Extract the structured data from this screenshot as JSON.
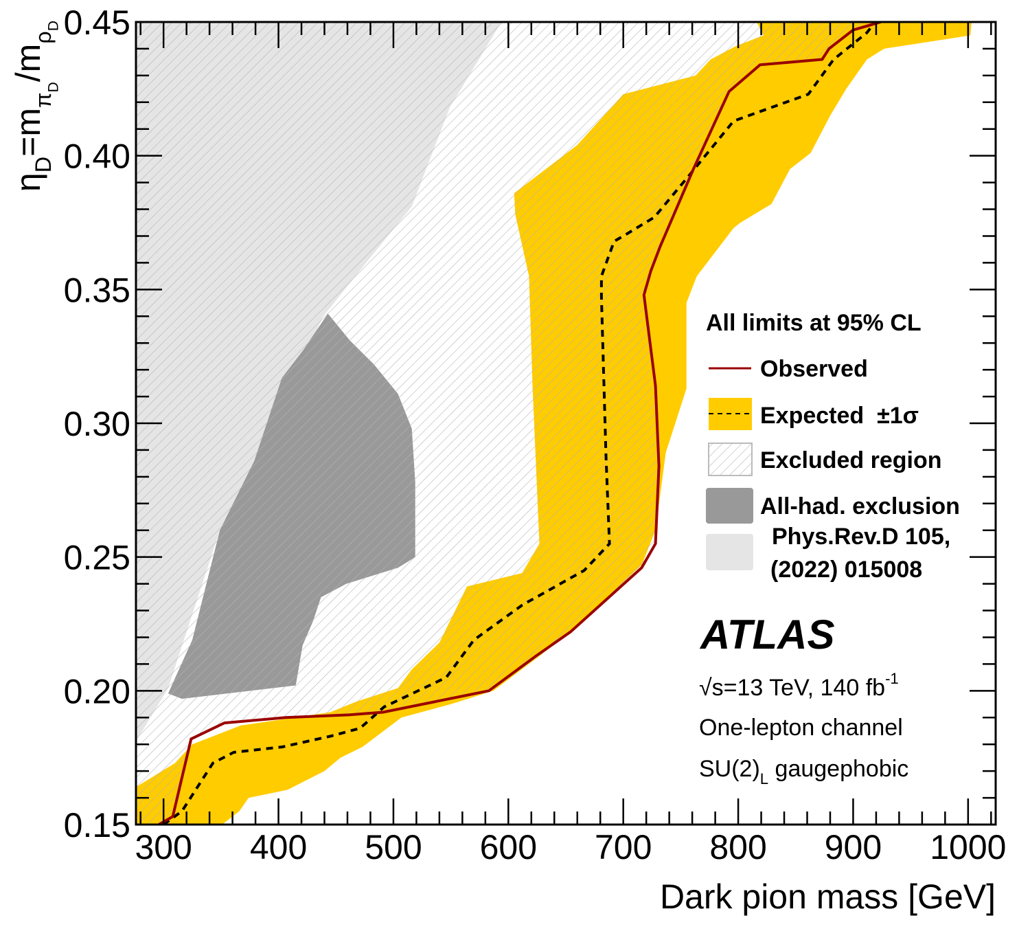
{
  "chart_data": {
    "type": "area",
    "xlabel": "Dark pion mass [GeV]",
    "ylabel": "η_D=m_{π_D}/m_{ρ_D}",
    "xlim": [
      276,
      1024
    ],
    "ylim": [
      0.15,
      0.45
    ],
    "x_ticks": [
      300,
      400,
      500,
      600,
      700,
      800,
      900,
      1000
    ],
    "x_tick_labels": [
      "300",
      "400",
      "500",
      "600",
      "700",
      "800",
      "900",
      "1000"
    ],
    "y_ticks": [
      0.15,
      0.2,
      0.25,
      0.3,
      0.35,
      0.4,
      0.45
    ],
    "y_tick_labels": [
      "0.15",
      "0.20",
      "0.25",
      "0.30",
      "0.35",
      "0.40",
      "0.45"
    ],
    "grid": false,
    "legend_placement": "right",
    "colors": {
      "observed": "#990000",
      "expected": "#000000",
      "band": "#ffcc00",
      "hatch": "#b4b4b4",
      "allhad": "#999999",
      "previous": "#e5e5e5"
    },
    "observed": [
      [
        296,
        0.15
      ],
      [
        308,
        0.153
      ],
      [
        324,
        0.182
      ],
      [
        353,
        0.188
      ],
      [
        406,
        0.19
      ],
      [
        461,
        0.191
      ],
      [
        491,
        0.192
      ],
      [
        583,
        0.2
      ],
      [
        624,
        0.213
      ],
      [
        654,
        0.222
      ],
      [
        716,
        0.246
      ],
      [
        728,
        0.255
      ],
      [
        731,
        0.284
      ],
      [
        728,
        0.314
      ],
      [
        718,
        0.348
      ],
      [
        724,
        0.357
      ],
      [
        732,
        0.366
      ],
      [
        761,
        0.395
      ],
      [
        792,
        0.424
      ],
      [
        819,
        0.434
      ],
      [
        873,
        0.436
      ],
      [
        879,
        0.44
      ],
      [
        900,
        0.447
      ],
      [
        924,
        0.45
      ]
    ],
    "expected": [
      [
        300,
        0.15
      ],
      [
        316,
        0.155
      ],
      [
        343,
        0.173
      ],
      [
        361,
        0.177
      ],
      [
        403,
        0.179
      ],
      [
        445,
        0.183
      ],
      [
        471,
        0.186
      ],
      [
        492,
        0.194
      ],
      [
        546,
        0.205
      ],
      [
        570,
        0.219
      ],
      [
        612,
        0.232
      ],
      [
        666,
        0.245
      ],
      [
        688,
        0.255
      ],
      [
        685,
        0.287
      ],
      [
        681,
        0.347
      ],
      [
        681,
        0.355
      ],
      [
        692,
        0.368
      ],
      [
        700,
        0.37
      ],
      [
        727,
        0.377
      ],
      [
        758,
        0.393
      ],
      [
        796,
        0.413
      ],
      [
        861,
        0.423
      ],
      [
        883,
        0.436
      ],
      [
        912,
        0.446
      ],
      [
        919,
        0.45
      ]
    ],
    "expected_band_outer": [
      [
        351,
        0.15
      ],
      [
        366,
        0.155
      ],
      [
        374,
        0.16
      ],
      [
        408,
        0.163
      ],
      [
        440,
        0.17
      ],
      [
        454,
        0.175
      ],
      [
        473,
        0.179
      ],
      [
        507,
        0.19
      ],
      [
        550,
        0.195
      ],
      [
        587,
        0.2
      ],
      [
        624,
        0.212
      ],
      [
        654,
        0.222
      ],
      [
        716,
        0.247
      ],
      [
        728,
        0.26
      ],
      [
        737,
        0.289
      ],
      [
        749,
        0.305
      ],
      [
        755,
        0.313
      ],
      [
        755,
        0.345
      ],
      [
        764,
        0.355
      ],
      [
        796,
        0.373
      ],
      [
        802,
        0.375
      ],
      [
        829,
        0.382
      ],
      [
        845,
        0.395
      ],
      [
        863,
        0.401
      ],
      [
        880,
        0.415
      ],
      [
        894,
        0.425
      ],
      [
        912,
        0.436
      ],
      [
        927,
        0.44
      ],
      [
        1002,
        0.445
      ],
      [
        1003,
        0.45
      ]
    ],
    "expected_band_inner": [
      [
        816,
        0.45
      ],
      [
        822,
        0.445
      ],
      [
        798,
        0.441
      ],
      [
        776,
        0.436
      ],
      [
        763,
        0.43
      ],
      [
        700,
        0.423
      ],
      [
        660,
        0.404
      ],
      [
        605,
        0.386
      ],
      [
        606,
        0.378
      ],
      [
        618,
        0.355
      ],
      [
        621,
        0.314
      ],
      [
        627,
        0.255
      ],
      [
        612,
        0.244
      ],
      [
        564,
        0.239
      ],
      [
        540,
        0.218
      ],
      [
        516,
        0.208
      ],
      [
        504,
        0.201
      ],
      [
        468,
        0.196
      ],
      [
        445,
        0.192
      ],
      [
        367,
        0.187
      ],
      [
        325,
        0.18
      ],
      [
        310,
        0.173
      ],
      [
        276,
        0.164
      ],
      [
        276,
        0.15
      ]
    ],
    "allhad_exclusion": [
      [
        304,
        0.199
      ],
      [
        316,
        0.197
      ],
      [
        415,
        0.202
      ],
      [
        421,
        0.217
      ],
      [
        430,
        0.226
      ],
      [
        437,
        0.235
      ],
      [
        459,
        0.24
      ],
      [
        504,
        0.246
      ],
      [
        519,
        0.25
      ],
      [
        519,
        0.278
      ],
      [
        516,
        0.298
      ],
      [
        504,
        0.311
      ],
      [
        483,
        0.322
      ],
      [
        462,
        0.331
      ],
      [
        443,
        0.341
      ],
      [
        421,
        0.327
      ],
      [
        403,
        0.317
      ],
      [
        379,
        0.286
      ],
      [
        349,
        0.26
      ],
      [
        325,
        0.219
      ]
    ],
    "previous_exclusion": [
      [
        276,
        0.45
      ],
      [
        594,
        0.45
      ],
      [
        549,
        0.418
      ],
      [
        516,
        0.381
      ],
      [
        480,
        0.362
      ],
      [
        439,
        0.34
      ],
      [
        379,
        0.286
      ],
      [
        349,
        0.26
      ],
      [
        304,
        0.201
      ],
      [
        276,
        0.181
      ]
    ],
    "legend": {
      "header": "All limits at 95% CL",
      "observed": "Observed",
      "expected": "Expected  ±1σ",
      "excluded": "Excluded region",
      "allhad": "All-had. exclusion",
      "ref1": "Phys.Rev.D 105,",
      "ref2": "(2022) 015008"
    },
    "annotations": {
      "experiment": "ATLAS",
      "energy": "√s=13 TeV, 140 fb^{-1}",
      "channel": "One-lepton channel",
      "model": "SU(2)_L gaugephobic"
    }
  }
}
